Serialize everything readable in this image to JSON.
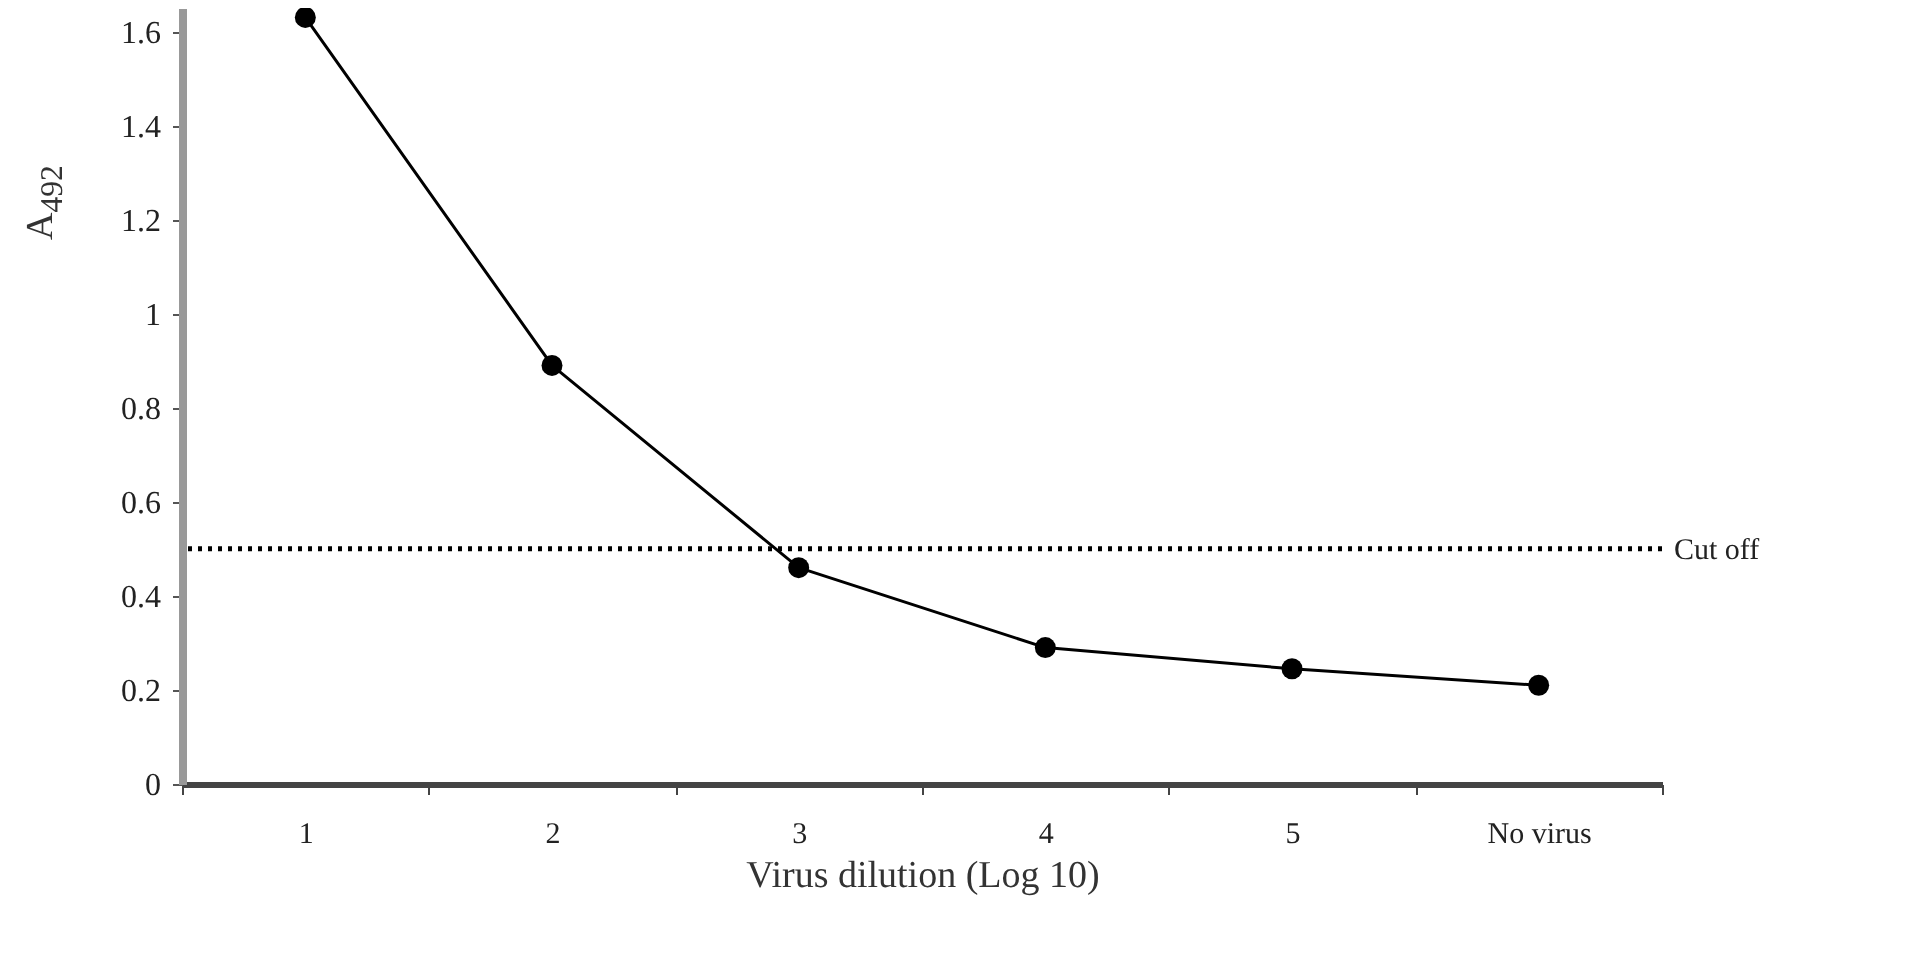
{
  "chart_data": {
    "type": "line",
    "xlabel": "Virus dilution (Log 10)",
    "ylabel": "A$_{492}$",
    "categories": [
      "1",
      "2",
      "3",
      "4",
      "5",
      "No virus"
    ],
    "series": [
      {
        "color": "#000000",
        "values": [
          1.63,
          0.89,
          0.46,
          0.29,
          0.245,
          0.21
        ]
      }
    ],
    "ylim": [
      0,
      1.65
    ],
    "yticks": [
      0,
      0.2,
      0.4,
      0.6,
      0.8,
      1,
      1.2,
      1.4,
      1.6
    ],
    "marker": "circle",
    "line_style": "solid",
    "grid": false,
    "ref_lines": [
      {
        "axis": "y",
        "value": 0.5,
        "label": "Cut off",
        "line_style": "dotted",
        "color": "#000000"
      }
    ]
  }
}
